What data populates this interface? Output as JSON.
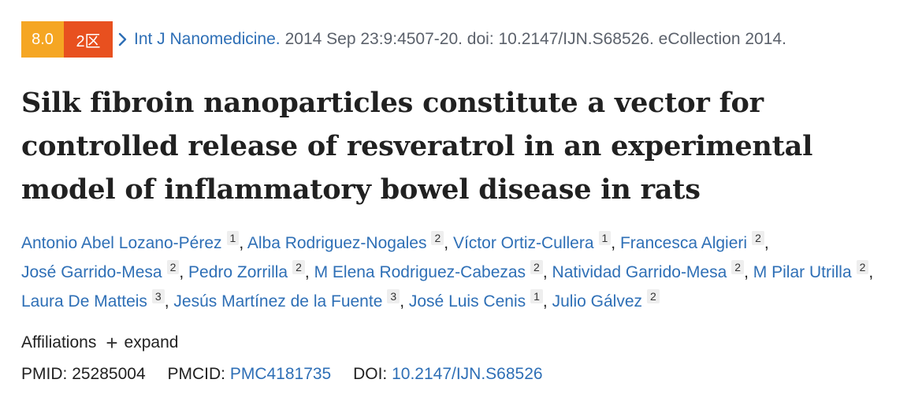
{
  "badges": {
    "score": "8.0",
    "zone": "2区",
    "score_color": "#f5a623",
    "zone_color": "#e8501f"
  },
  "citation": {
    "journal": "Int J Nanomedicine.",
    "details": "2014 Sep 23:9:4507-20. doi: 10.2147/IJN.S68526. eCollection 2014."
  },
  "title": "Silk fibroin nanoparticles constitute a vector for controlled release of resveratrol in an experimental model of inflammatory bowel disease in rats",
  "authors": [
    {
      "name": "Antonio Abel Lozano-Pérez",
      "aff": "1"
    },
    {
      "name": "Alba Rodriguez-Nogales",
      "aff": "2"
    },
    {
      "name": "Víctor Ortiz-Cullera",
      "aff": "1"
    },
    {
      "name": "Francesca Algieri",
      "aff": "2"
    },
    {
      "name": "José Garrido-Mesa",
      "aff": "2"
    },
    {
      "name": "Pedro Zorrilla",
      "aff": "2"
    },
    {
      "name": "M Elena Rodriguez-Cabezas",
      "aff": "2"
    },
    {
      "name": "Natividad Garrido-Mesa",
      "aff": "2"
    },
    {
      "name": "M Pilar Utrilla",
      "aff": "2"
    },
    {
      "name": "Laura De Matteis",
      "aff": "3"
    },
    {
      "name": "Jesús Martínez de la Fuente",
      "aff": "3"
    },
    {
      "name": "José Luis Cenis",
      "aff": "1"
    },
    {
      "name": "Julio Gálvez",
      "aff": "2"
    }
  ],
  "affiliations": {
    "label": "Affiliations",
    "expand_icon": "+",
    "expand_label": "expand"
  },
  "identifiers": {
    "pmid_label": "PMID:",
    "pmid": "25285004",
    "pmcid_label": "PMCID:",
    "pmcid": "PMC4181735",
    "doi_label": "DOI:",
    "doi": "10.2147/IJN.S68526"
  },
  "colors": {
    "link": "#2e6fb6",
    "text": "#212121",
    "muted": "#5b616b"
  }
}
